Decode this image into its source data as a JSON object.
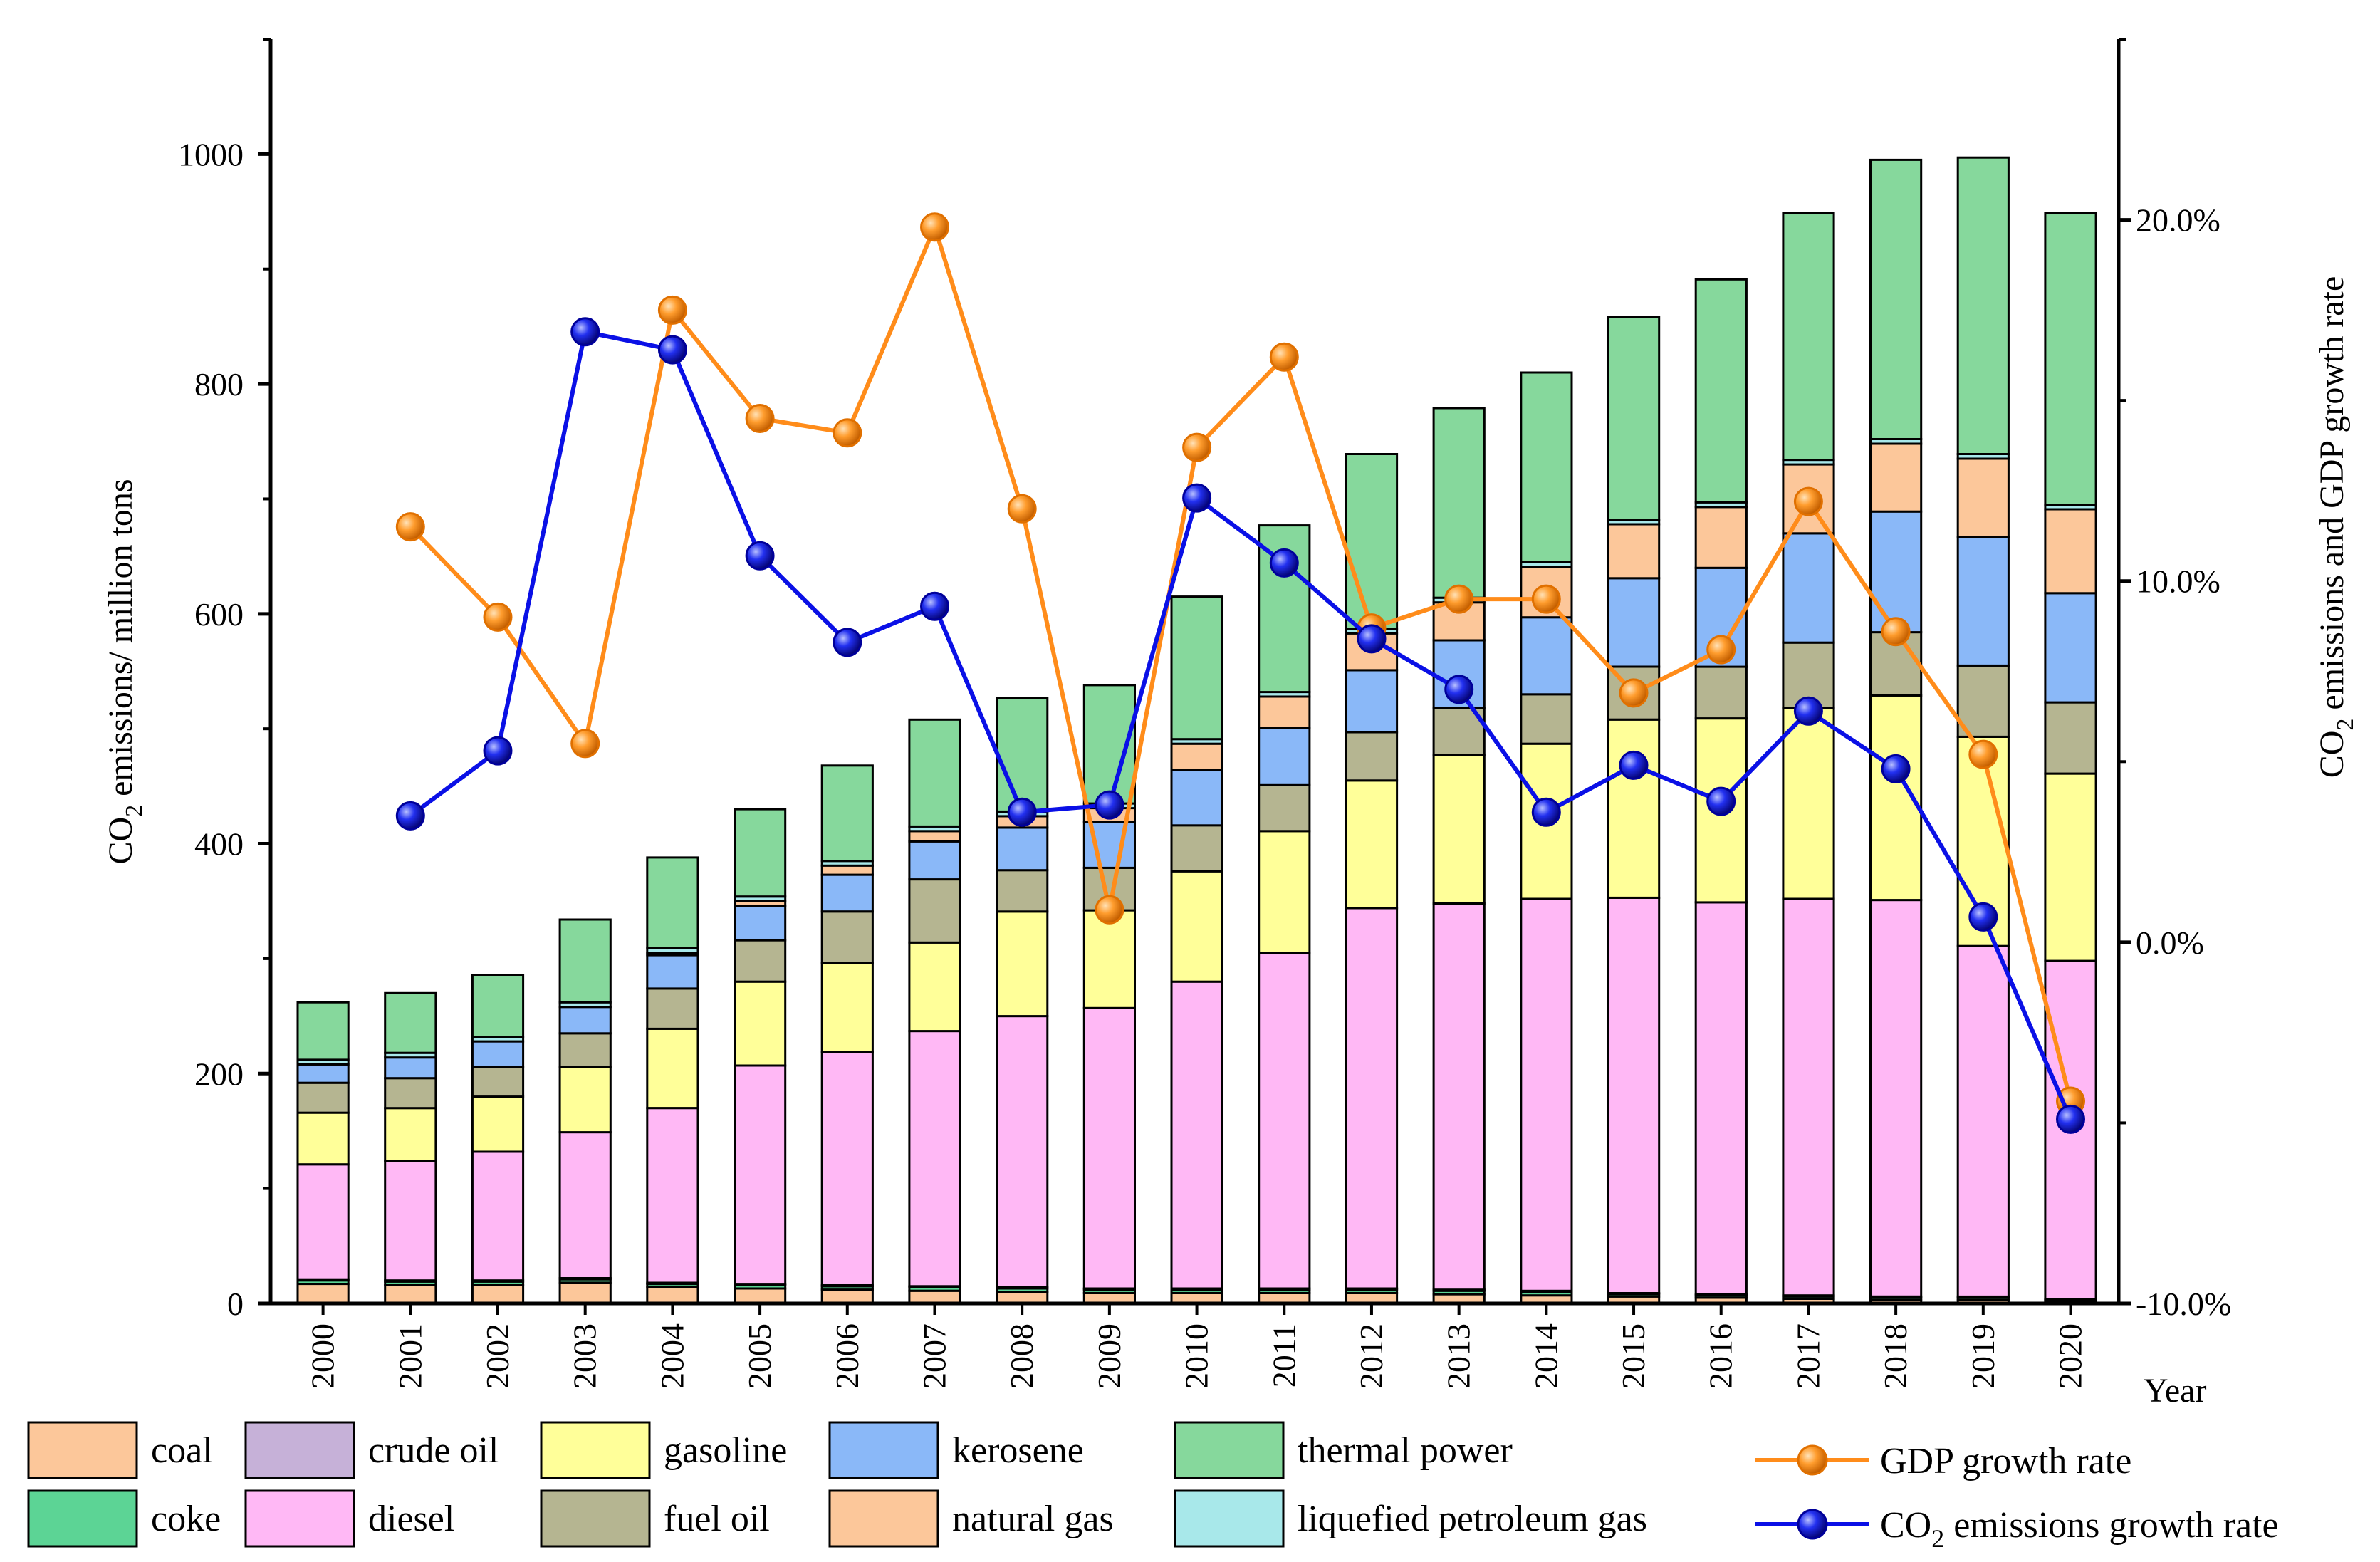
{
  "chart_data": {
    "type": "bar",
    "stacked": true,
    "categories": [
      "2000",
      "2001",
      "2002",
      "2003",
      "2004",
      "2005",
      "2006",
      "2007",
      "2008",
      "2009",
      "2010",
      "2011",
      "2012",
      "2013",
      "2014",
      "2015",
      "2016",
      "2017",
      "2018",
      "2019",
      "2020"
    ],
    "xlabel": "Year",
    "ylabel_left": {
      "main": "CO",
      "sub": "2",
      "rest": " emissions/ million tons"
    },
    "ylabel_right": {
      "main": "CO",
      "sub": "2",
      "rest": " emissions and GDP growth rate"
    },
    "ylim_left": [
      0,
      1100
    ],
    "ylim_right": [
      -10,
      25
    ],
    "yticks_left": [
      "0",
      "200",
      "400",
      "600",
      "800",
      "1000"
    ],
    "yticks_right": [
      "-10.0%",
      "0.0%",
      "10.0%",
      "20.0%"
    ],
    "series": [
      {
        "name": "coal",
        "color": "#fcc79a",
        "values": [
          17,
          16,
          16,
          18,
          14,
          13,
          12,
          11,
          10,
          9,
          9,
          9,
          9,
          8,
          7,
          6,
          5,
          4,
          3,
          3,
          2
        ]
      },
      {
        "name": "coke",
        "color": "#5cd495",
        "values": [
          3,
          3,
          3,
          3,
          3,
          3,
          3,
          3,
          3,
          3,
          3,
          3,
          3,
          3,
          3,
          2,
          2,
          2,
          2,
          2,
          1
        ]
      },
      {
        "name": "crude oil",
        "color": "#c6b1d8",
        "values": [
          1,
          1,
          1,
          1,
          1,
          1,
          1,
          1,
          1,
          1,
          1,
          1,
          1,
          1,
          1,
          1,
          1,
          1,
          1,
          1,
          1
        ]
      },
      {
        "name": "diesel",
        "color": "#ffb8f5",
        "values": [
          100,
          104,
          112,
          127,
          152,
          190,
          203,
          222,
          236,
          244,
          267,
          292,
          331,
          336,
          341,
          344,
          341,
          345,
          345,
          305,
          294
        ]
      },
      {
        "name": "gasoline",
        "color": "#ffff99",
        "values": [
          45,
          46,
          48,
          57,
          69,
          73,
          77,
          77,
          91,
          85,
          96,
          106,
          111,
          129,
          135,
          155,
          160,
          166,
          178,
          182,
          163
        ]
      },
      {
        "name": "fuel oil",
        "color": "#b5b591",
        "values": [
          26,
          26,
          26,
          29,
          35,
          36,
          45,
          55,
          36,
          37,
          40,
          40,
          42,
          41,
          43,
          46,
          45,
          57,
          55,
          62,
          62
        ]
      },
      {
        "name": "kerosene",
        "color": "#8ab8f8",
        "values": [
          16,
          18,
          22,
          23,
          29,
          30,
          32,
          33,
          37,
          40,
          48,
          50,
          54,
          59,
          67,
          77,
          86,
          95,
          105,
          112,
          95
        ]
      },
      {
        "name": "natural gas",
        "color": "#fcc79a",
        "values": [
          0,
          0,
          0,
          0,
          2,
          4,
          8,
          9,
          10,
          12,
          23,
          27,
          32,
          33,
          44,
          47,
          53,
          60,
          59,
          68,
          73
        ]
      },
      {
        "name": "liquefied petroleum gas",
        "color": "#a8e8ea",
        "values": [
          4,
          4,
          4,
          4,
          4,
          4,
          4,
          4,
          4,
          4,
          4,
          4,
          4,
          4,
          4,
          4,
          4,
          4,
          4,
          4,
          4
        ]
      },
      {
        "name": "thermal power",
        "color": "#86d89c",
        "values": [
          50,
          52,
          54,
          72,
          79,
          76,
          83,
          93,
          99,
          103,
          124,
          145,
          152,
          165,
          165,
          176,
          194,
          215,
          243,
          258,
          254
        ]
      }
    ],
    "line_series": [
      {
        "name": "GDP growth rate",
        "color": "#ff8c1a",
        "axis": "right",
        "values": [
          null,
          11.5,
          9.0,
          5.5,
          17.5,
          14.5,
          14.1,
          19.8,
          12.0,
          0.9,
          13.7,
          16.2,
          8.7,
          9.5,
          9.5,
          6.9,
          8.1,
          12.2,
          8.6,
          5.2,
          -4.4
        ]
      },
      {
        "name": "CO2 emissions growth rate",
        "color": "#0a10e6",
        "axis": "right",
        "values": [
          null,
          3.5,
          5.3,
          16.9,
          16.4,
          10.7,
          8.3,
          9.3,
          3.6,
          3.8,
          12.3,
          10.5,
          8.4,
          7.0,
          3.6,
          4.9,
          3.9,
          6.4,
          4.8,
          0.7,
          -4.9
        ]
      }
    ],
    "legend": {
      "position": "bottom",
      "bar_entries": [
        {
          "label": "coal",
          "color": "#fcc79a"
        },
        {
          "label": "crude oil",
          "color": "#c6b1d8"
        },
        {
          "label": "gasoline",
          "color": "#ffff99"
        },
        {
          "label": "kerosene",
          "color": "#8ab8f8"
        },
        {
          "label": "thermal power",
          "color": "#86d89c"
        },
        {
          "label": "coke",
          "color": "#5cd495"
        },
        {
          "label": "diesel",
          "color": "#ffb8f5"
        },
        {
          "label": "fuel oil",
          "color": "#b5b591"
        },
        {
          "label": "natural gas",
          "color": "#fcc79a"
        },
        {
          "label": "liquefied petroleum gas",
          "color": "#a8e8ea"
        }
      ],
      "line_entries": [
        {
          "label": "GDP growth rate",
          "color": "#ff8c1a",
          "marker": "#ff9a2e"
        },
        {
          "main": "CO",
          "sub": "2",
          "rest": " emissions growth rate",
          "color": "#0a10e6",
          "marker": "#1a1ae0"
        }
      ]
    }
  }
}
